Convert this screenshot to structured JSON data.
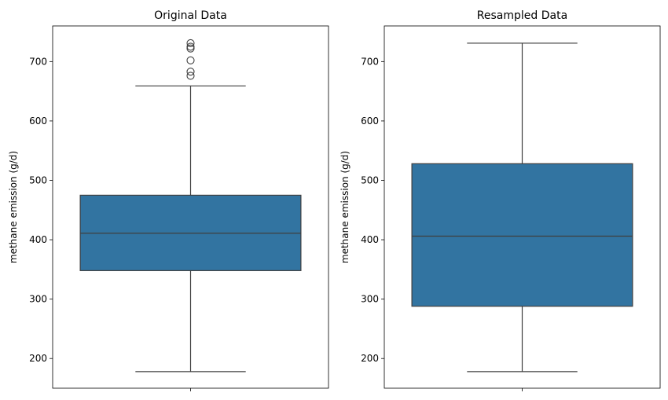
{
  "chart_data": [
    {
      "type": "box",
      "title": "Original Data",
      "ylabel": "methane emission (g/d)",
      "ylim": [
        150,
        760
      ],
      "yticks": [
        200,
        300,
        400,
        500,
        600,
        700
      ],
      "box": {
        "whisker_low": 178,
        "q1": 348,
        "median": 411,
        "q3": 475,
        "whisker_high": 659
      },
      "outliers": [
        676,
        683,
        702,
        722,
        725,
        731
      ],
      "color": "#3274a1"
    },
    {
      "type": "box",
      "title": "Resampled Data",
      "ylabel": "methane emission (g/d)",
      "ylim": [
        150,
        760
      ],
      "yticks": [
        200,
        300,
        400,
        500,
        600,
        700
      ],
      "box": {
        "whisker_low": 178,
        "q1": 288,
        "median": 406,
        "q3": 528,
        "whisker_high": 731
      },
      "outliers": [],
      "color": "#3274a1"
    }
  ]
}
